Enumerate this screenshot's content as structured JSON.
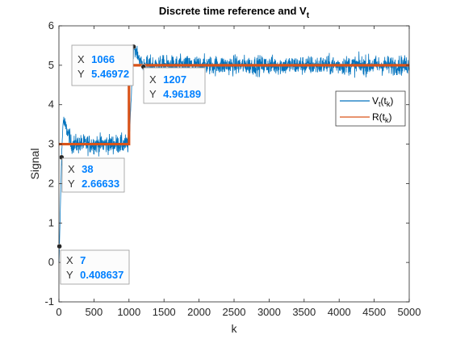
{
  "chart_data": {
    "type": "line",
    "title": "Discrete time reference and V",
    "title_sub": "t",
    "xlabel": "k",
    "ylabel": "Signal",
    "xlim": [
      0,
      5000
    ],
    "ylim": [
      -1,
      6
    ],
    "xticks": [
      0,
      500,
      1000,
      1500,
      2000,
      2500,
      3000,
      3500,
      4000,
      4500,
      5000
    ],
    "yticks": [
      -1,
      0,
      1,
      2,
      3,
      4,
      5,
      6
    ],
    "grid": false,
    "legend_position": "right",
    "series": [
      {
        "name": "V",
        "name_sub": "t",
        "name_paren": "(t",
        "name_sub2": "k",
        "name_close": ")",
        "color": "#0072BD",
        "segments": [
          {
            "k_start": 0,
            "k_end": 7,
            "from": 0,
            "to": 0.408637,
            "noise": 0
          },
          {
            "k_start": 7,
            "k_end": 38,
            "from": 0.408637,
            "to": 2.66633,
            "noise": 0
          },
          {
            "k_start": 38,
            "k_end": 60,
            "from": 2.66633,
            "to": 3.6,
            "noise": 0.08
          },
          {
            "k_start": 60,
            "k_end": 160,
            "from": 3.6,
            "to": 3.15,
            "noise": 0.1
          },
          {
            "k_start": 160,
            "k_end": 1000,
            "level": 3.0,
            "noise": 0.12
          },
          {
            "k_start": 1000,
            "k_end": 1066,
            "from": 3.0,
            "to": 5.46972,
            "noise": 0.08
          },
          {
            "k_start": 1066,
            "k_end": 1207,
            "from": 5.46972,
            "to": 4.96189,
            "noise": 0.08
          },
          {
            "k_start": 1207,
            "k_end": 5000,
            "level": 5.0,
            "noise": 0.12
          }
        ]
      },
      {
        "name": "R",
        "name_paren": "(t",
        "name_sub2": "k",
        "name_close": ")",
        "color": "#D95319",
        "steps": [
          {
            "k_start": 0,
            "k_end": 1000,
            "value": 3
          },
          {
            "k_start": 1000,
            "k_end": 5000,
            "value": 5
          }
        ]
      }
    ],
    "annotations": [
      {
        "x_label": "X",
        "y_label": "Y",
        "x": "7",
        "y": "0.408637",
        "kx": 7,
        "ky": 0.408637
      },
      {
        "x_label": "X",
        "y_label": "Y",
        "x": "38",
        "y": "2.66633",
        "kx": 38,
        "ky": 2.66633
      },
      {
        "x_label": "X",
        "y_label": "Y",
        "x": "1066",
        "y": "5.46972",
        "kx": 1066,
        "ky": 5.46972
      },
      {
        "x_label": "X",
        "y_label": "Y",
        "x": "1207",
        "y": "4.96189",
        "kx": 1207,
        "ky": 4.96189
      }
    ]
  }
}
